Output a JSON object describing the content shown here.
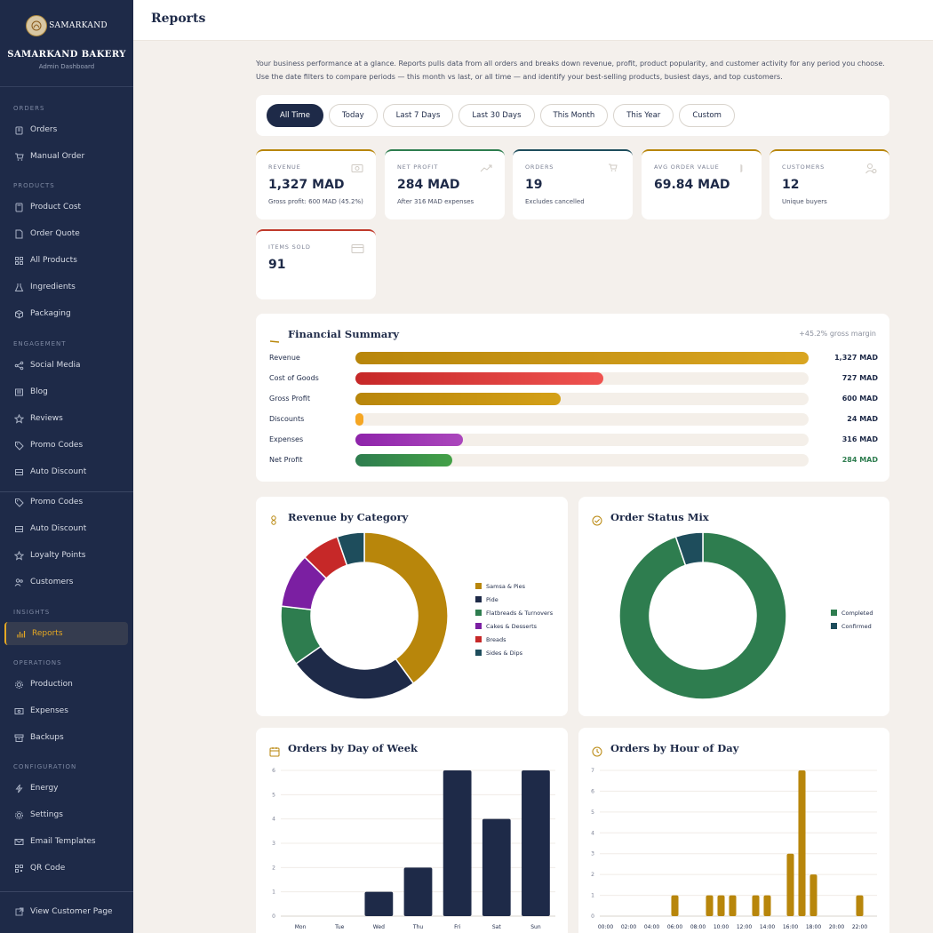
{
  "brand": {
    "logo_text": "SAMARKAND",
    "name": "SAMARKAND BAKERY",
    "subtitle": "Admin Dashboard"
  },
  "sidebar": {
    "sections": {
      "orders": "ORDERS",
      "products": "PRODUCTS",
      "engagement": "ENGAGEMENT",
      "insights": "INSIGHTS",
      "operations": "OPERATIONS",
      "configuration": "CONFIGURATION"
    },
    "items": [
      {
        "label": "Orders",
        "icon": "clipboard-icon"
      },
      {
        "label": "Manual Order",
        "icon": "cart-icon"
      },
      {
        "label": "Product Cost",
        "icon": "calculator-icon"
      },
      {
        "label": "Order Quote",
        "icon": "document-icon"
      },
      {
        "label": "All Products",
        "icon": "grid-icon"
      },
      {
        "label": "Ingredients",
        "icon": "flask-icon"
      },
      {
        "label": "Packaging",
        "icon": "box-icon"
      },
      {
        "label": "Social Media",
        "icon": "share-icon"
      },
      {
        "label": "Blog",
        "icon": "newspaper-icon"
      },
      {
        "label": "Reviews",
        "icon": "star-icon"
      },
      {
        "label": "Promo Codes",
        "icon": "tag-icon"
      },
      {
        "label": "Auto Discount",
        "icon": "ticket-icon"
      },
      {
        "label": "Promo Codes",
        "icon": "tag-icon"
      },
      {
        "label": "Auto Discount",
        "icon": "ticket-icon"
      },
      {
        "label": "Loyalty Points",
        "icon": "star-icon"
      },
      {
        "label": "Customers",
        "icon": "users-icon"
      },
      {
        "label": "Reports",
        "icon": "bar-chart-icon"
      },
      {
        "label": "Production",
        "icon": "gear-icon"
      },
      {
        "label": "Expenses",
        "icon": "money-icon"
      },
      {
        "label": "Backups",
        "icon": "archive-icon"
      },
      {
        "label": "Energy",
        "icon": "bolt-icon"
      },
      {
        "label": "Settings",
        "icon": "gear-icon"
      },
      {
        "label": "Email Templates",
        "icon": "mail-icon"
      },
      {
        "label": "QR Code",
        "icon": "qr-icon"
      }
    ],
    "footer_link": "View Customer Page"
  },
  "header": {
    "title": "Reports"
  },
  "intro": "Your business performance at a glance. Reports pulls data from all orders and breaks down revenue, profit, product popularity, and customer activity for any period you choose. Use the date filters to compare periods — this month vs last, or all time — and identify your best-selling products, busiest days, and top customers.",
  "filters": [
    "All Time",
    "Today",
    "Last 7 Days",
    "Last 30 Days",
    "This Month",
    "This Year",
    "Custom"
  ],
  "active_filter": "All Time",
  "cards": [
    {
      "label": "REVENUE",
      "value": "1,327 MAD",
      "sub": "Gross profit: 600 MAD (45.2%)",
      "color": "#b8860b",
      "icon": "cash-icon"
    },
    {
      "label": "NET PROFIT",
      "value": "284 MAD",
      "sub": "After 316 MAD expenses",
      "color": "#2e7d4f",
      "icon": "trend-up-icon"
    },
    {
      "label": "ORDERS",
      "value": "19",
      "sub": "Excludes cancelled",
      "color": "#1e4d5c",
      "icon": "cart-icon"
    },
    {
      "label": "AVG ORDER VALUE",
      "value": "69.84 MAD",
      "sub": "",
      "color": "#b8860b",
      "icon": "receipt-icon"
    },
    {
      "label": "CUSTOMERS",
      "value": "12",
      "sub": "Unique buyers",
      "color": "#b8860b",
      "icon": "user-icon"
    },
    {
      "label": "ITEMS SOLD",
      "value": "91",
      "sub": "",
      "color": "#c0392b",
      "icon": "card-icon"
    }
  ],
  "financial": {
    "title": "Financial Summary",
    "margin_note": "+45.2% gross margin",
    "rows": [
      {
        "name": "Revenue",
        "amount": "1,327 MAD",
        "fraction": 1.0,
        "color_a": "#b8860b",
        "color_b": "#d9a521"
      },
      {
        "name": "Cost of Goods",
        "amount": "727 MAD",
        "fraction": 0.548,
        "color_a": "#c62828",
        "color_b": "#ef5350"
      },
      {
        "name": "Gross Profit",
        "amount": "600 MAD",
        "fraction": 0.452,
        "color_a": "#b8860b",
        "color_b": "#d4a017"
      },
      {
        "name": "Discounts",
        "amount": "24 MAD",
        "fraction": 0.018,
        "color_a": "#f5a623",
        "color_b": "#f5a623"
      },
      {
        "name": "Expenses",
        "amount": "316 MAD",
        "fraction": 0.238,
        "color_a": "#8e24aa",
        "color_b": "#ab47bc"
      },
      {
        "name": "Net Profit",
        "amount": "284 MAD",
        "fraction": 0.214,
        "color_a": "#2e7d4f",
        "color_b": "#43a047"
      }
    ]
  },
  "revenue_by_category": {
    "title": "Revenue by Category",
    "chart_data": {
      "type": "pie",
      "categories": [
        "Samsa & Pies",
        "Pide",
        "Flatbreads & Turnovers",
        "Cakes & Desserts",
        "Breads",
        "Sides & Dips"
      ],
      "values": [
        38,
        24,
        11,
        10,
        7,
        5
      ],
      "colors": [
        "#b8860b",
        "#1e2a48",
        "#2e7d4f",
        "#7b1fa2",
        "#c62828",
        "#1e4d5c"
      ]
    }
  },
  "order_status": {
    "title": "Order Status Mix",
    "chart_data": {
      "type": "pie",
      "categories": [
        "Completed",
        "Confirmed"
      ],
      "values": [
        18,
        1
      ],
      "colors": [
        "#2e7d4f",
        "#1e4d5c"
      ]
    }
  },
  "orders_by_day": {
    "title": "Orders by Day of Week",
    "chart_data": {
      "type": "bar",
      "categories": [
        "Mon",
        "Tue",
        "Wed",
        "Thu",
        "Fri",
        "Sat",
        "Sun"
      ],
      "values": [
        0,
        0,
        1,
        2,
        6,
        4,
        6
      ],
      "ylim": [
        0,
        6
      ],
      "yticks": [
        "0",
        "1",
        "2",
        "3",
        "4",
        "5",
        "6"
      ],
      "color": "#1e2a48"
    }
  },
  "orders_by_hour": {
    "title": "Orders by Hour of Day",
    "chart_data": {
      "type": "bar",
      "categories": [
        "00:00",
        "01:00",
        "02:00",
        "03:00",
        "04:00",
        "05:00",
        "06:00",
        "07:00",
        "08:00",
        "09:00",
        "10:00",
        "11:00",
        "12:00",
        "13:00",
        "14:00",
        "15:00",
        "16:00",
        "17:00",
        "18:00",
        "19:00",
        "20:00",
        "21:00",
        "22:00",
        "23:00"
      ],
      "values": [
        0,
        0,
        0,
        0,
        0,
        0,
        1,
        0,
        0,
        1,
        1,
        1,
        0,
        1,
        1,
        0,
        3,
        7,
        2,
        0,
        0,
        0,
        1,
        0
      ],
      "xticks": [
        "00:00",
        "02:00",
        "04:00",
        "06:00",
        "08:00",
        "10:00",
        "12:00",
        "14:00",
        "16:00",
        "18:00",
        "20:00",
        "22:00"
      ],
      "ylim": [
        0,
        7
      ],
      "yticks": [
        "0",
        "1",
        "2",
        "3",
        "4",
        "5",
        "6",
        "7"
      ],
      "color": "#b8860b"
    }
  }
}
